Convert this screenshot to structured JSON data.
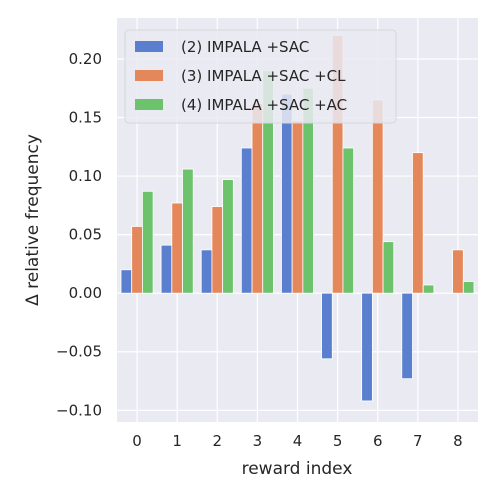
{
  "chart_data": {
    "type": "bar",
    "xlabel": "reward index",
    "ylabel": "Δ relative frequency",
    "categories": [
      "0",
      "1",
      "2",
      "3",
      "4",
      "5",
      "6",
      "7",
      "8"
    ],
    "series": [
      {
        "name": "(2) IMPALA +SAC",
        "color": "#5a7fcf",
        "values": [
          0.02,
          0.041,
          0.037,
          0.124,
          0.17,
          -0.056,
          -0.092,
          -0.073,
          0.0
        ]
      },
      {
        "name": "(3) IMPALA +SAC +CL",
        "color": "#e4875b",
        "values": [
          0.057,
          0.077,
          0.074,
          0.162,
          0.147,
          0.22,
          0.165,
          0.12,
          0.037
        ]
      },
      {
        "name": "(4) IMPALA +SAC +AC",
        "color": "#6cc36c",
        "values": [
          0.087,
          0.106,
          0.097,
          0.19,
          0.175,
          0.124,
          0.044,
          0.007,
          0.01
        ]
      }
    ],
    "ylim": [
      -0.11,
      0.235
    ],
    "yticks": [
      -0.1,
      -0.05,
      0.0,
      0.05,
      0.1,
      0.15,
      0.2
    ],
    "ytick_labels": [
      "−0.10",
      "−0.05",
      "0.00",
      "0.05",
      "0.10",
      "0.15",
      "0.20"
    ],
    "grid": true,
    "legend_position": "top-left",
    "background": "#eaeaf2"
  }
}
